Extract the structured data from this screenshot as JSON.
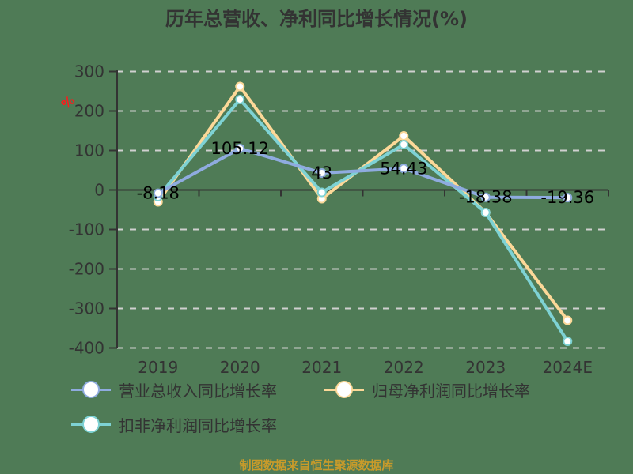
{
  "title": "历年总营收、净利同比增长情况(%)",
  "unit_label": "%",
  "footer": "制图数据来自恒生聚源数据库",
  "colors": {
    "background": "#4f7b56",
    "revenue": "#8fabdf",
    "net_profit": "#fcd898",
    "deducted_profit": "#7ed2d4",
    "axis": "#333333",
    "grid": "#d0d0d0",
    "unit": "#ff1a1a",
    "footer": "#c99b2a",
    "label": "#000000"
  },
  "legend": [
    {
      "name": "营业总收入同比增长率",
      "color_key": "revenue"
    },
    {
      "name": "归母净利润同比增长率",
      "color_key": "net_profit"
    },
    {
      "name": "扣非净利润同比增长率",
      "color_key": "deducted_profit"
    }
  ],
  "chart_data": {
    "type": "line",
    "title": "历年总营收、净利同比增长情况(%)",
    "xlabel": "",
    "ylabel": "%",
    "categories": [
      "2019",
      "2020",
      "2021",
      "2022",
      "2023",
      "2024E"
    ],
    "ylim": [
      -400,
      300
    ],
    "yticks": [
      300,
      200,
      100,
      0,
      -100,
      -200,
      -300,
      -400
    ],
    "grid": true,
    "legend_position": "bottom",
    "series": [
      {
        "name": "营业总收入同比增长率",
        "values": [
          -8.18,
          105.12,
          43,
          54.43,
          -18.38,
          -19.36
        ],
        "labels": [
          "-8.18",
          "105.12",
          "43",
          "54.43",
          "-18.38",
          "-19.36"
        ],
        "color": "#8fabdf"
      },
      {
        "name": "归母净利润同比增长率",
        "values": [
          -30,
          262,
          -22,
          137,
          -57,
          -330
        ],
        "color": "#fcd898"
      },
      {
        "name": "扣非净利润同比增长率",
        "values": [
          -17,
          229,
          -6,
          115,
          -57,
          -383
        ],
        "color": "#7ed2d4"
      }
    ]
  }
}
